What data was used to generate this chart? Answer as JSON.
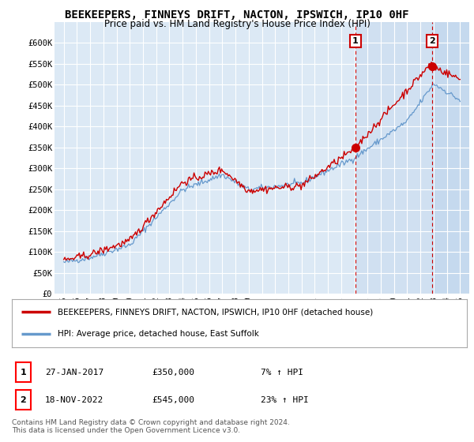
{
  "title": "BEEKEEPERS, FINNEYS DRIFT, NACTON, IPSWICH, IP10 0HF",
  "subtitle": "Price paid vs. HM Land Registry's House Price Index (HPI)",
  "ylim": [
    0,
    650000
  ],
  "yticks": [
    0,
    50000,
    100000,
    150000,
    200000,
    250000,
    300000,
    350000,
    400000,
    450000,
    500000,
    550000,
    600000
  ],
  "ytick_labels": [
    "£0",
    "£50K",
    "£100K",
    "£150K",
    "£200K",
    "£250K",
    "£300K",
    "£350K",
    "£400K",
    "£450K",
    "£500K",
    "£550K",
    "£600K"
  ],
  "xlim_left": 1994.3,
  "xlim_right": 2025.7,
  "background_color": "#dce9f5",
  "plot_bg_color": "#dce9f5",
  "shade_color": "#c5d9ee",
  "grid_color": "#ffffff",
  "sale1_x": 2017.07,
  "sale1_y": 350000,
  "sale2_x": 2022.88,
  "sale2_y": 545000,
  "label1": "1",
  "label2": "2",
  "legend_line1": "BEEKEEPERS, FINNEYS DRIFT, NACTON, IPSWICH, IP10 0HF (detached house)",
  "legend_line2": "HPI: Average price, detached house, East Suffolk",
  "annotation1_date": "27-JAN-2017",
  "annotation1_price": "£350,000",
  "annotation1_hpi": "7% ↑ HPI",
  "annotation2_date": "18-NOV-2022",
  "annotation2_price": "£545,000",
  "annotation2_hpi": "23% ↑ HPI",
  "footer": "Contains HM Land Registry data © Crown copyright and database right 2024.\nThis data is licensed under the Open Government Licence v3.0.",
  "red_color": "#cc0000",
  "blue_color": "#6699cc",
  "title_fontsize": 10,
  "subtitle_fontsize": 8.5
}
